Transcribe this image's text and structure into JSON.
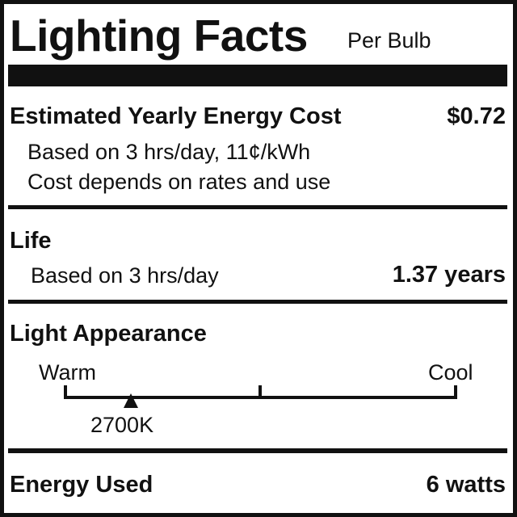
{
  "header": {
    "title": "Lighting Facts",
    "subtitle": "Per Bulb"
  },
  "energy_cost": {
    "label": "Estimated Yearly Energy Cost",
    "value": "$0.72",
    "note1": "Based on 3 hrs/day, 11¢/kWh",
    "note2": "Cost depends on rates and use"
  },
  "life": {
    "label": "Life",
    "note": "Based on 3 hrs/day",
    "value": "1.37 years"
  },
  "light_appearance": {
    "label": "Light Appearance",
    "warm_label": "Warm",
    "cool_label": "Cool",
    "value": "2700K",
    "marker_position_fraction": 0.167
  },
  "energy_used": {
    "label": "Energy Used",
    "value": "6 watts"
  }
}
